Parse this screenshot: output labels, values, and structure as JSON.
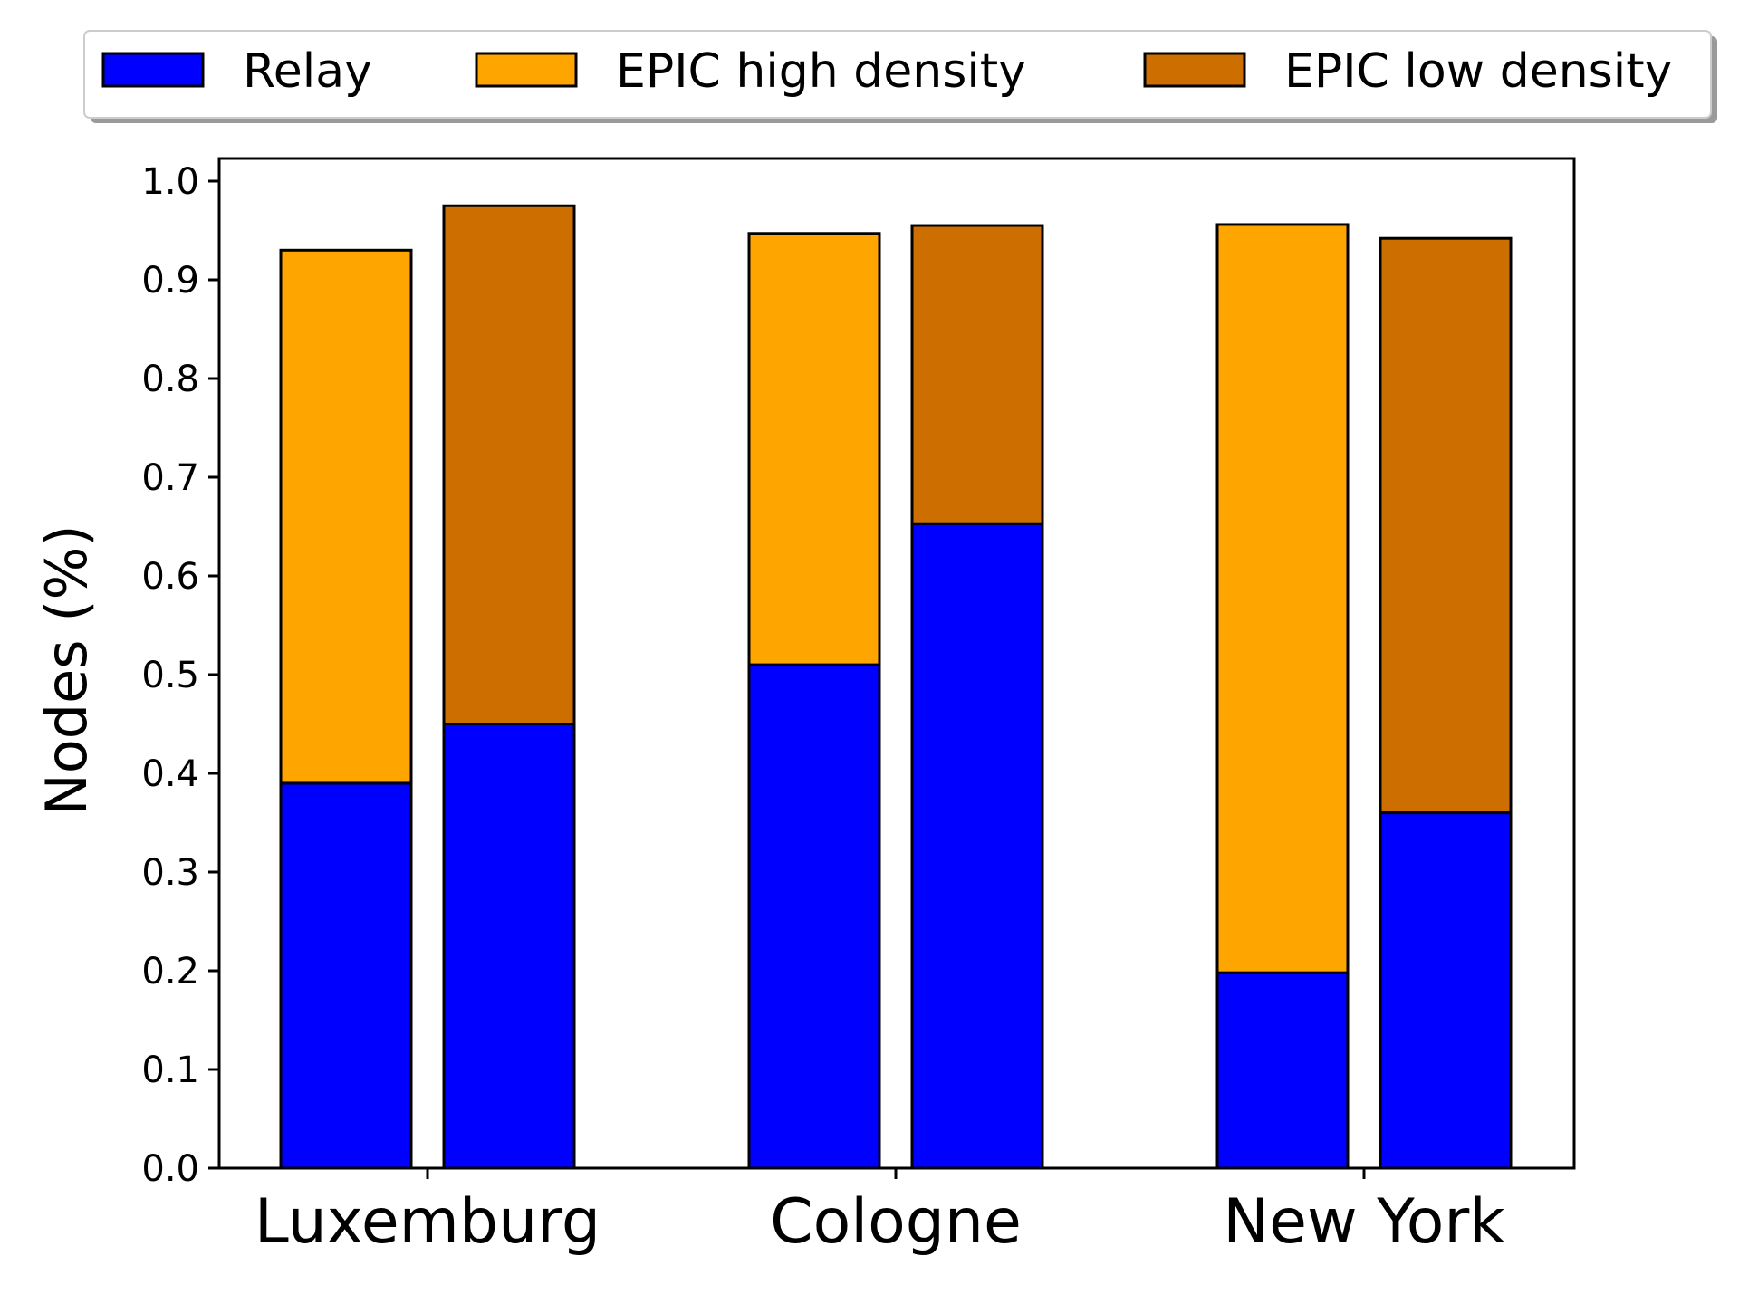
{
  "chart_data": {
    "type": "bar",
    "stacked": true,
    "grouped": true,
    "title": "",
    "xlabel": "",
    "ylabel": "Nodes (%)",
    "ylim": [
      0,
      1.02
    ],
    "yticks": [
      "0.0",
      "0.1",
      "0.2",
      "0.3",
      "0.4",
      "0.5",
      "0.6",
      "0.7",
      "0.8",
      "0.9",
      "1.0"
    ],
    "categories": [
      "Luxemburg",
      "Cologne",
      "New York"
    ],
    "legend": {
      "placement": "top, above plot",
      "entries": [
        {
          "label": "Relay",
          "color": "#0000ff"
        },
        {
          "label": "EPIC high density",
          "color": "#ffa500"
        },
        {
          "label": "EPIC low density",
          "color": "#cc6e00"
        }
      ]
    },
    "groups": [
      {
        "category": "Luxemburg",
        "bars": [
          {
            "relay": 0.39,
            "epic": 0.54,
            "epic_type": "EPIC high density"
          },
          {
            "relay": 0.45,
            "epic": 0.525,
            "epic_type": "EPIC low density"
          }
        ]
      },
      {
        "category": "Cologne",
        "bars": [
          {
            "relay": 0.51,
            "epic": 0.437,
            "epic_type": "EPIC high density"
          },
          {
            "relay": 0.653,
            "epic": 0.302,
            "epic_type": "EPIC low density"
          }
        ]
      },
      {
        "category": "New York",
        "bars": [
          {
            "relay": 0.198,
            "epic": 0.758,
            "epic_type": "EPIC high density"
          },
          {
            "relay": 0.36,
            "epic": 0.582,
            "epic_type": "EPIC low density"
          }
        ]
      }
    ],
    "grid": false,
    "colors": {
      "relay": "#0000ff",
      "epic_high": "#ffa500",
      "epic_low": "#cc6e00",
      "edge": "#000000"
    }
  }
}
